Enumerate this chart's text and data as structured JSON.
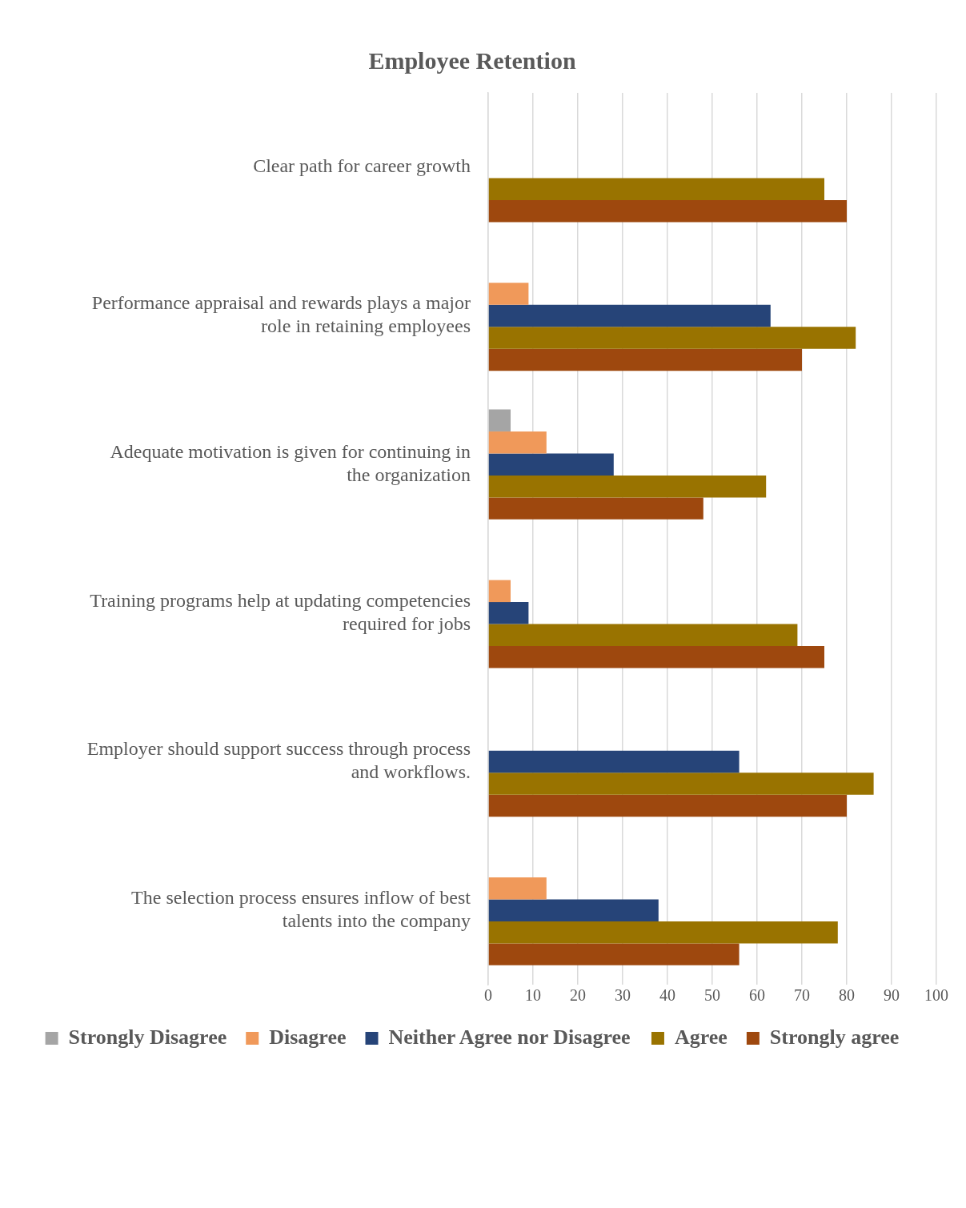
{
  "chart_data": {
    "type": "bar",
    "orientation": "horizontal",
    "title": "Employee Retention",
    "categories": [
      "Clear path for career growth",
      "Performance appraisal and rewards plays a major role in retaining employees",
      "Adequate motivation is given for continuing in the organization",
      "Training programs help at updating competencies required for jobs",
      "Employer should support success through process and workflows.",
      "The selection process ensures inflow of best talents into the company"
    ],
    "series": [
      {
        "name": "Strongly Disagree",
        "color": "#a5a5a5",
        "values": [
          0,
          0,
          5,
          0,
          0,
          0
        ]
      },
      {
        "name": "Disagree",
        "color": "#f0995a",
        "values": [
          0,
          9,
          13,
          5,
          0,
          13
        ]
      },
      {
        "name": "Neither Agree nor Disagree",
        "color": "#264478",
        "values": [
          0,
          63,
          28,
          9,
          56,
          38
        ]
      },
      {
        "name": "Agree",
        "color": "#997300",
        "values": [
          75,
          82,
          62,
          69,
          86,
          78
        ]
      },
      {
        "name": "Strongly agree",
        "color": "#9e480e",
        "values": [
          80,
          70,
          48,
          75,
          80,
          56
        ]
      }
    ],
    "xlim": [
      0,
      100
    ],
    "xticks": [
      0,
      10,
      20,
      30,
      40,
      50,
      60,
      70,
      80,
      90,
      100
    ],
    "grid": "x",
    "legend": "bottom"
  }
}
